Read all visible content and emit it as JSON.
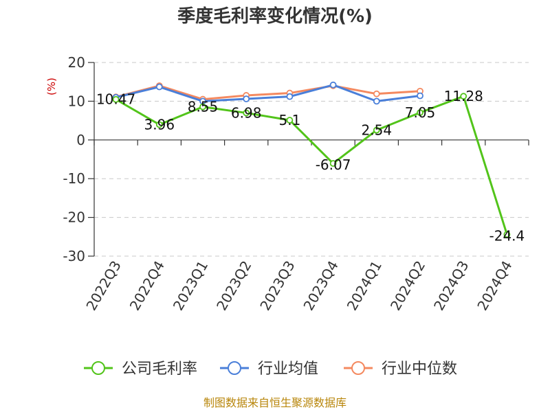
{
  "chart_data": {
    "type": "line",
    "title": "季度毛利率变化情况(%)",
    "ylabel": "(%)",
    "xlabel": "",
    "categories": [
      "2022Q3",
      "2022Q4",
      "2023Q1",
      "2023Q2",
      "2023Q3",
      "2023Q4",
      "2024Q1",
      "2024Q2",
      "2024Q3",
      "2024Q4"
    ],
    "ylim": [
      -30,
      20
    ],
    "yticks": [
      20,
      10,
      0,
      -10,
      -20,
      -30
    ],
    "grid": true,
    "legend_position": "bottom",
    "series": [
      {
        "name": "公司毛利率",
        "color": "#52c41a",
        "values": [
          10.47,
          3.96,
          8.55,
          6.98,
          5.1,
          -6.07,
          2.54,
          7.05,
          11.28,
          -24.4
        ],
        "labels": [
          "10.47",
          "3.96",
          "8.55",
          "6.98",
          "5.1",
          "-6.07",
          "2.54",
          "7.05",
          "11.28",
          "-24.4"
        ]
      },
      {
        "name": "行业均值",
        "color": "#4a7fd9",
        "values": [
          11.0,
          13.7,
          10.0,
          10.6,
          11.2,
          14.2,
          10.0,
          11.4,
          null,
          null
        ]
      },
      {
        "name": "行业中位数",
        "color": "#f4895f",
        "values": [
          11.1,
          14.0,
          10.5,
          11.5,
          12.1,
          14.0,
          11.9,
          12.6,
          null,
          null
        ]
      }
    ]
  },
  "footer": {
    "source_text": "制图数据来自恒生聚源数据库"
  }
}
